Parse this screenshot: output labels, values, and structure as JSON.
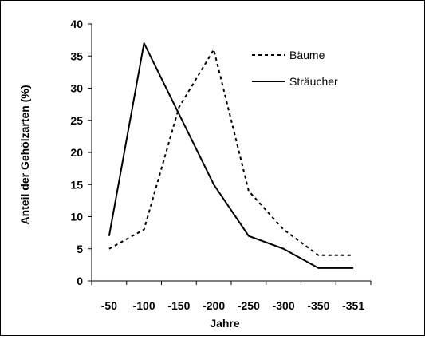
{
  "chart_data": {
    "type": "line",
    "title": "",
    "xlabel": "Jahre",
    "ylabel": "Anteil der Gehölzarten (%)",
    "categories": [
      "-50",
      "-100",
      "-150",
      "-200",
      "-250",
      "-300",
      "-350",
      "-351"
    ],
    "ylim": [
      0,
      40
    ],
    "yticks": [
      0,
      5,
      10,
      15,
      20,
      25,
      30,
      35,
      40
    ],
    "grid": false,
    "legend_position": "top-right",
    "series": [
      {
        "name": "Bäume",
        "style": "dotted",
        "color": "#000000",
        "values": [
          5,
          8,
          27,
          36,
          14,
          8,
          4,
          4
        ]
      },
      {
        "name": "Sträucher",
        "style": "solid",
        "color": "#000000",
        "values": [
          7,
          37,
          26,
          15,
          7,
          5,
          2,
          2
        ]
      }
    ]
  }
}
